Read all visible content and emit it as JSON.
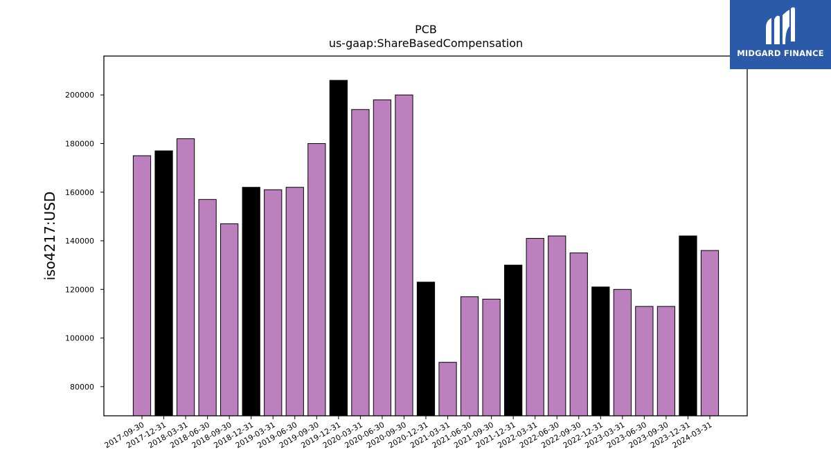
{
  "chart_data": {
    "type": "bar",
    "title": "PCB",
    "subtitle": "us-gaap:ShareBasedCompensation",
    "xlabel": "",
    "ylabel": "iso4217:USD",
    "ylim": [
      68000,
      216000
    ],
    "yticks": [
      80000,
      100000,
      120000,
      140000,
      160000,
      180000,
      200000
    ],
    "grid": false,
    "categories": [
      "2017-09-30",
      "2017-12-31",
      "2018-03-31",
      "2018-06-30",
      "2018-09-30",
      "2018-12-31",
      "2019-03-31",
      "2019-06-30",
      "2019-09-30",
      "2019-12-31",
      "2020-03-31",
      "2020-06-30",
      "2020-09-30",
      "2020-12-31",
      "2021-03-31",
      "2021-06-30",
      "2021-09-30",
      "2021-12-31",
      "2022-03-31",
      "2022-06-30",
      "2022-09-30",
      "2022-12-31",
      "2023-03-31",
      "2023-06-30",
      "2023-09-30",
      "2023-12-31",
      "2024-03-31"
    ],
    "values": [
      175000,
      177000,
      182000,
      157000,
      147000,
      162000,
      161000,
      162000,
      180000,
      206000,
      194000,
      198000,
      200000,
      123000,
      90000,
      117000,
      116000,
      130000,
      141000,
      142000,
      135000,
      121000,
      120000,
      113000,
      113000,
      142000,
      136000
    ],
    "bar_colors": [
      "#bb80bd",
      "#000000",
      "#bb80bd",
      "#bb80bd",
      "#bb80bd",
      "#000000",
      "#bb80bd",
      "#bb80bd",
      "#bb80bd",
      "#000000",
      "#bb80bd",
      "#bb80bd",
      "#bb80bd",
      "#000000",
      "#bb80bd",
      "#bb80bd",
      "#bb80bd",
      "#000000",
      "#bb80bd",
      "#bb80bd",
      "#bb80bd",
      "#000000",
      "#bb80bd",
      "#bb80bd",
      "#bb80bd",
      "#000000",
      "#bb80bd"
    ]
  },
  "logo": {
    "text": "MIDGARD FINANCE",
    "background": "#2b5aa8"
  }
}
